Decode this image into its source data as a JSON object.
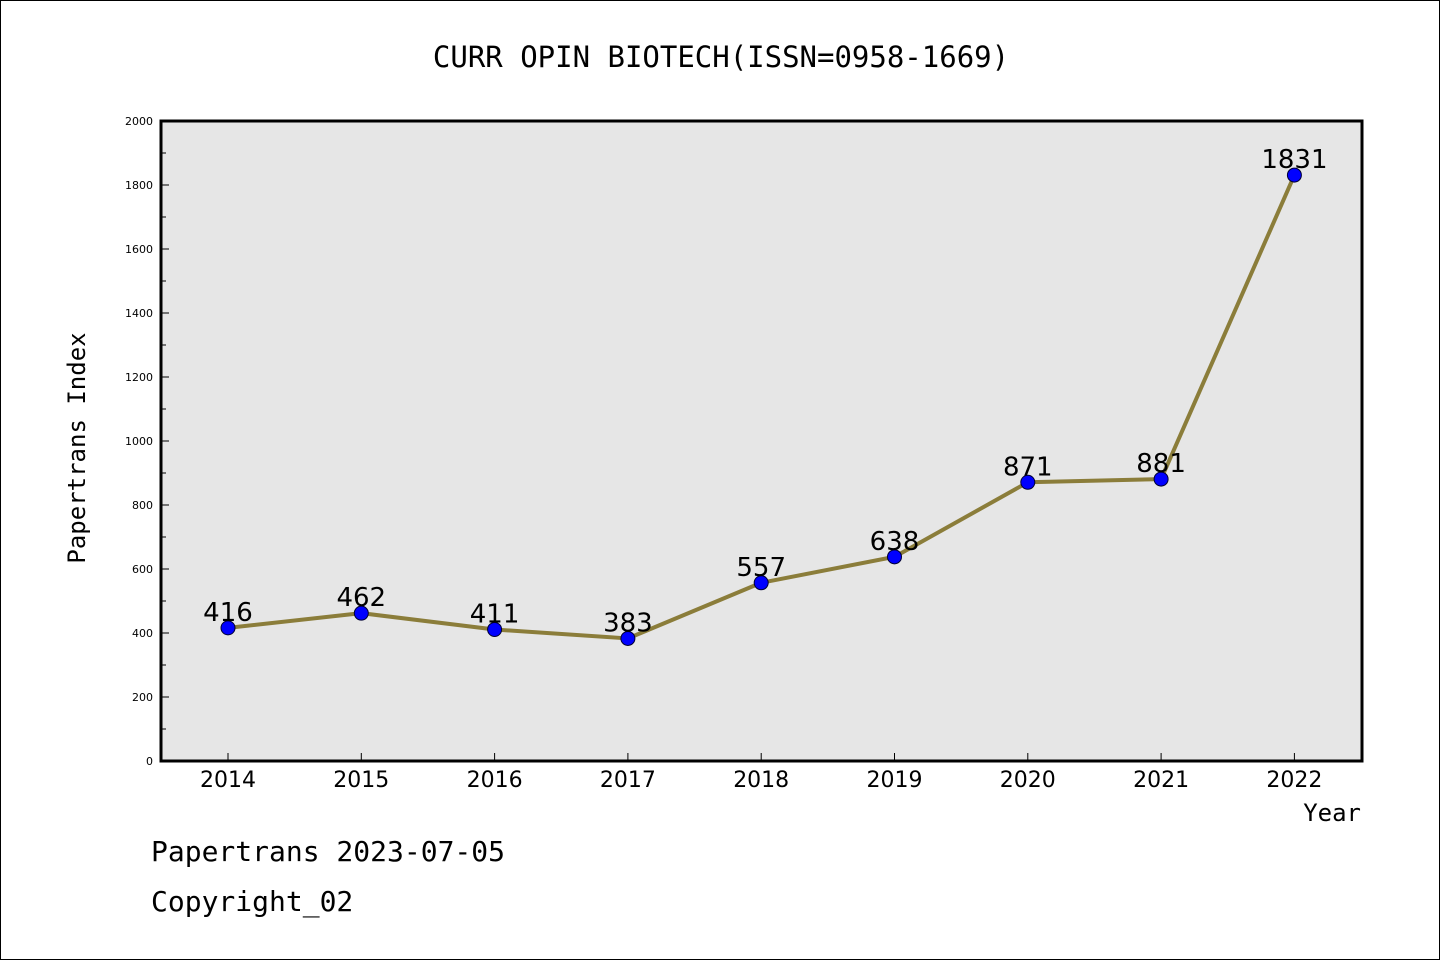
{
  "chart_data": {
    "type": "line",
    "title": "CURR OPIN BIOTECH(ISSN=0958-1669)",
    "xlabel": "Year",
    "ylabel": "Papertrans Index",
    "categories": [
      "2014",
      "2015",
      "2016",
      "2017",
      "2018",
      "2019",
      "2020",
      "2021",
      "2022"
    ],
    "series": [
      {
        "values": [
          416,
          462,
          411,
          383,
          557,
          638,
          871,
          881,
          1831
        ]
      }
    ],
    "data_labels": [
      "416",
      "462",
      "411",
      "383",
      "557",
      "638",
      "871",
      "881",
      "1831"
    ],
    "ylim": [
      0,
      2000
    ],
    "y_ticks": [
      0,
      200,
      400,
      600,
      800,
      1000,
      1200,
      1400,
      1600,
      1800,
      2000
    ],
    "y_tick_labels": [
      "0",
      "200",
      "400",
      "600",
      "800",
      "1000",
      "1200",
      "1400",
      "1600",
      "1800",
      "2000"
    ],
    "grid": false,
    "colors": {
      "line": "#8b7d3a",
      "marker": "#0000ff",
      "plot_background": "#e6e6e6"
    }
  },
  "footer": {
    "line1": "Papertrans 2023-07-05",
    "line2": "Copyright_02"
  }
}
